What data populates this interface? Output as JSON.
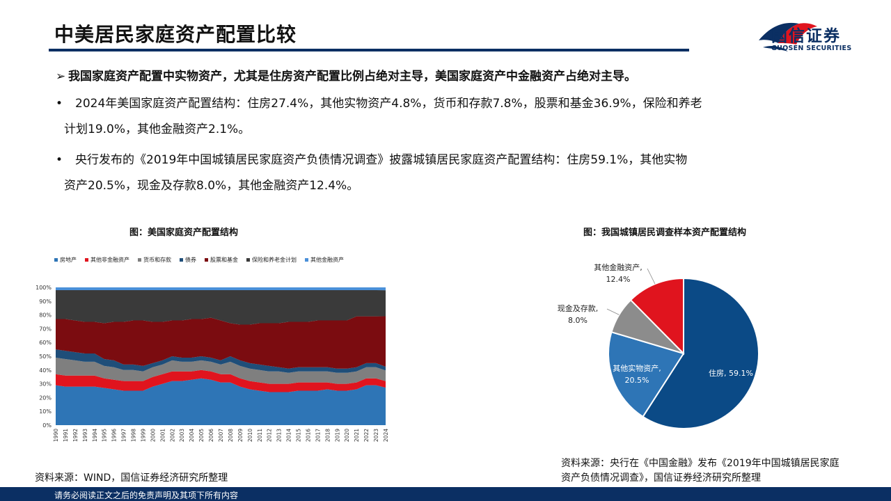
{
  "header": {
    "title": "中美居民家庭资产配置比较",
    "logo_text": "国信证券",
    "logo_sub": "GUOSEN SECURITIES"
  },
  "content": {
    "lead": "我国家庭资产配置中实物资产，尤其是住房资产配置比例占绝对主导，美国家庭资产中金融资产占绝对主导。",
    "bullet1_line1": "2024年美国家庭资产配置结构：住房27.4%，其他实物资产4.8%，货币和存款7.8%，股票和基金36.9%，保险和养老",
    "bullet1_line2": "计划19.0%，其他金融资产2.1%。",
    "bullet2_line1": "央行发布的《2019年中国城镇居民家庭资产负债情况调查》披露城镇居民家庭资产配置结构：住房59.1%，其他实物",
    "bullet2_line2": "资产20.5%，现金及存款8.0%，其他金融资产12.4%。",
    "bullet_mark": "•"
  },
  "figure1": {
    "title": "图：美国家庭资产配置结构",
    "source": "资料来源：WIND，国信证券经济研究所整理"
  },
  "figure2": {
    "title": "图：我国城镇居民调查样本资产配置结构",
    "source_line1": "资料来源：央行在《中国金融》发布《2019年中国城镇居民家庭",
    "source_line2": "资产负债情况调查》，国信证券经济研究所整理"
  },
  "footer": {
    "disclaimer": "请务必阅读正文之后的免责声明及其项下所有内容"
  },
  "chart_data": [
    {
      "type": "area",
      "stacked": true,
      "title": "图：美国家庭资产配置结构",
      "x": [
        "1990",
        "1991",
        "1992",
        "1993",
        "1994",
        "1995",
        "1996",
        "1997",
        "1998",
        "1999",
        "2000",
        "2001",
        "2002",
        "2003",
        "2004",
        "2005",
        "2006",
        "2007",
        "2008",
        "2009",
        "2010",
        "2011",
        "2012",
        "2013",
        "2014",
        "2015",
        "2016",
        "2017",
        "2018",
        "2019",
        "2020",
        "2021",
        "2022",
        "2023",
        "2024"
      ],
      "ylim": [
        0,
        100
      ],
      "yticks": [
        "0%",
        "10%",
        "20%",
        "30%",
        "40%",
        "50%",
        "60%",
        "70%",
        "80%",
        "90%",
        "100%"
      ],
      "legend_position": "top",
      "series": [
        {
          "name": "房地产",
          "color": "#2e75b6",
          "values": [
            29,
            28,
            28,
            28,
            28,
            27,
            26,
            25,
            25,
            25,
            28,
            30,
            32,
            32,
            33,
            34,
            33,
            31,
            31,
            28,
            26,
            25,
            24,
            24,
            24,
            25,
            25,
            25,
            26,
            25,
            25,
            26,
            29,
            29,
            27.4
          ]
        },
        {
          "name": "其他非金融资产",
          "color": "#e0141e",
          "values": [
            8,
            8,
            8,
            8,
            8,
            7,
            7,
            7,
            7,
            7,
            7,
            7,
            7,
            7,
            6,
            6,
            6,
            6,
            6,
            6,
            6,
            6,
            6,
            6,
            6,
            6,
            6,
            6,
            5,
            5,
            5,
            5,
            5,
            5,
            4.8
          ]
        },
        {
          "name": "货币和存款",
          "color": "#7f7f7f",
          "values": [
            12,
            12,
            11,
            10,
            10,
            9,
            9,
            8,
            8,
            7,
            7,
            7,
            8,
            7,
            7,
            7,
            7,
            7,
            9,
            9,
            9,
            9,
            9,
            9,
            8,
            8,
            8,
            8,
            8,
            8,
            8,
            8,
            8,
            8,
            7.8
          ]
        },
        {
          "name": "债券",
          "color": "#1f4e79",
          "values": [
            6,
            6,
            6,
            6,
            6,
            5,
            5,
            4,
            4,
            4,
            3,
            3,
            3,
            3,
            3,
            3,
            3,
            3,
            4,
            4,
            4,
            4,
            4,
            3,
            3,
            3,
            3,
            3,
            3,
            3,
            3,
            3,
            3,
            3,
            2.7
          ]
        },
        {
          "name": "股票和基金",
          "color": "#7b0c10",
          "values": [
            22,
            23,
            23,
            23,
            23,
            26,
            28,
            31,
            32,
            33,
            30,
            28,
            26,
            27,
            28,
            27,
            29,
            29,
            24,
            26,
            28,
            30,
            31,
            32,
            34,
            33,
            33,
            34,
            34,
            35,
            35,
            37,
            34,
            34,
            36.9
          ]
        },
        {
          "name": "保险和养老金计划",
          "color": "#3a3a3a",
          "values": [
            21,
            21,
            22,
            23,
            23,
            24,
            23,
            23,
            22,
            22,
            23,
            23,
            22,
            22,
            21,
            21,
            20,
            22,
            24,
            25,
            25,
            24,
            24,
            24,
            23,
            23,
            23,
            22,
            22,
            22,
            22,
            19,
            19,
            19,
            19.0
          ]
        },
        {
          "name": "其他金融资产",
          "color": "#4a90d9",
          "values": [
            2,
            2,
            2,
            2,
            2,
            2,
            2,
            2,
            2,
            2,
            2,
            2,
            2,
            2,
            2,
            2,
            2,
            2,
            2,
            2,
            2,
            2,
            2,
            2,
            2,
            2,
            2,
            2,
            2,
            2,
            2,
            2,
            2,
            2,
            2.1
          ]
        }
      ]
    },
    {
      "type": "pie",
      "title": "图：我国城镇居民调查样本资产配置结构",
      "slices": [
        {
          "name": "住房",
          "value": 59.1,
          "label": "住房, 59.1%",
          "color": "#0b4a86"
        },
        {
          "name": "其他实物资产",
          "value": 20.5,
          "label_line1": "其他实物资产,",
          "label_line2": "20.5%",
          "color": "#2e75b6"
        },
        {
          "name": "现金及存款",
          "value": 8.0,
          "label_line1": "现金及存款,",
          "label_line2": "8.0%",
          "color": "#8c8c8c"
        },
        {
          "name": "其他金融资产",
          "value": 12.4,
          "label_line1": "其他金融资产,",
          "label_line2": "12.4%",
          "color": "#e0141e"
        }
      ]
    }
  ]
}
